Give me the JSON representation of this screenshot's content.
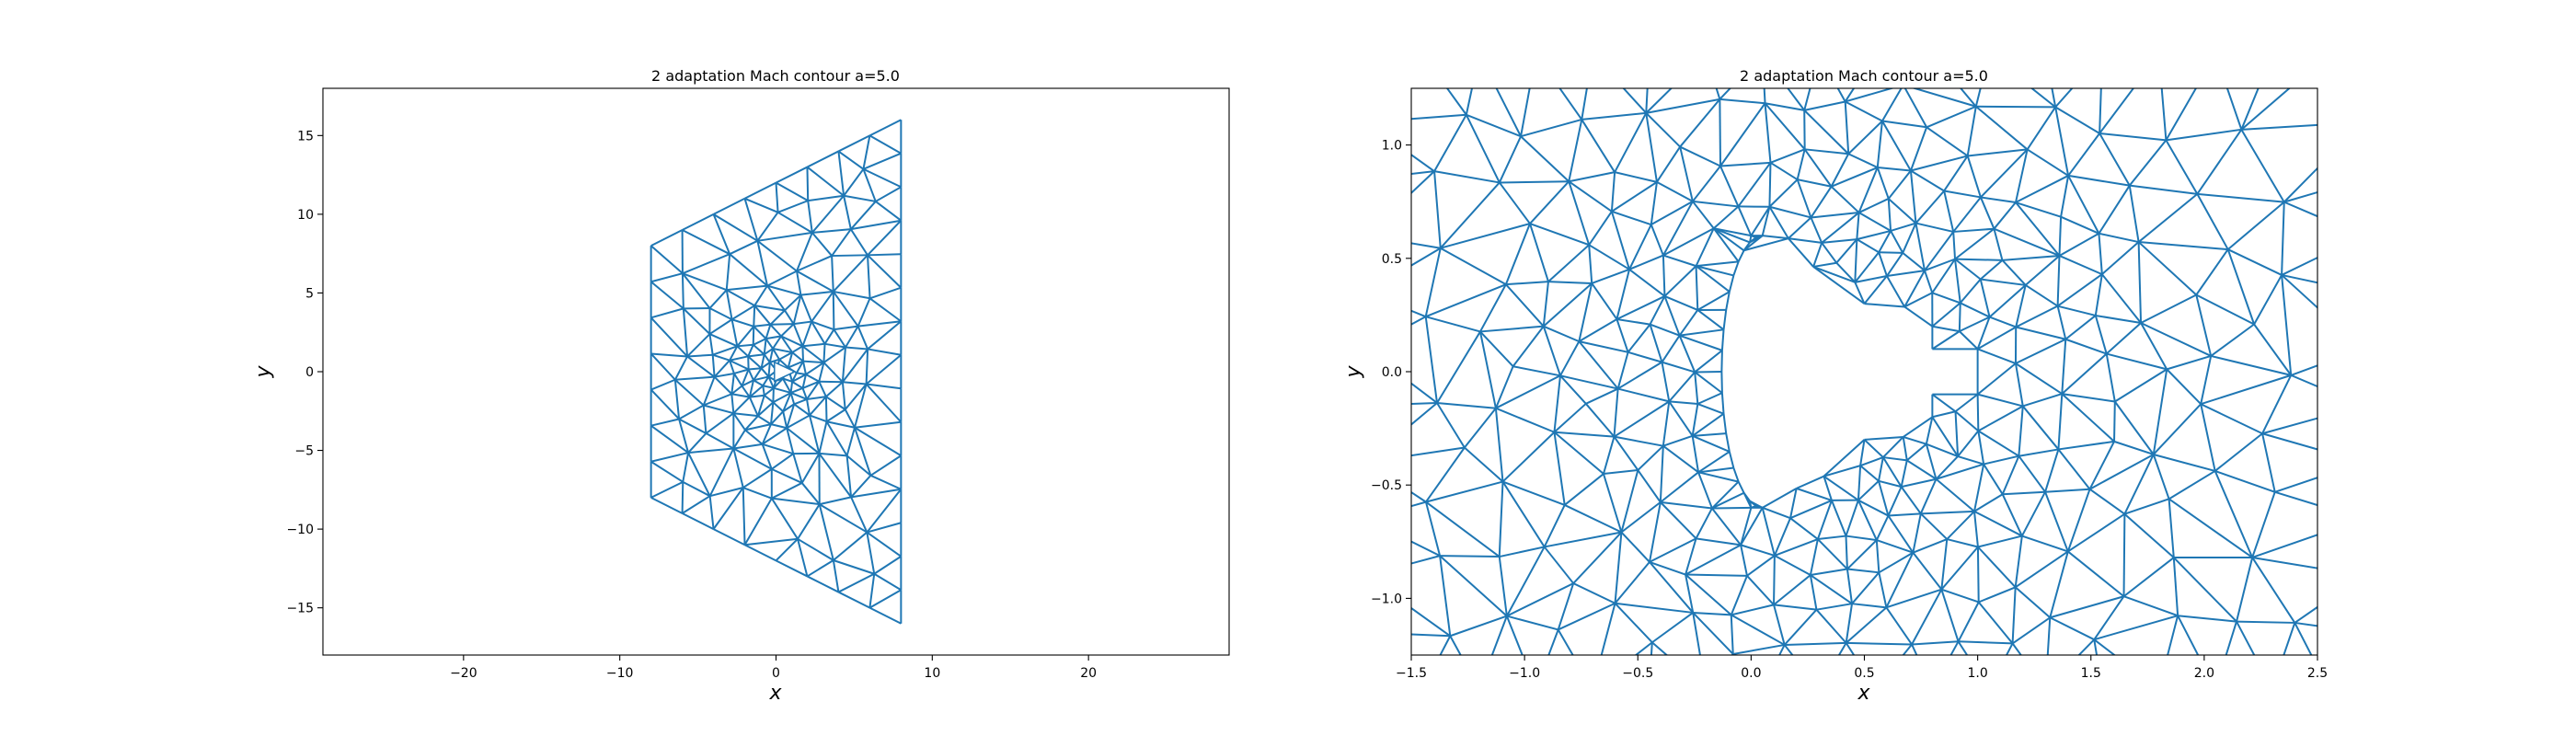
{
  "chart_data": [
    {
      "type": "line",
      "title": "2 adaptation Mach contour a=5.0",
      "xlabel": "x",
      "ylabel": "y",
      "xlim": [
        -29,
        29
      ],
      "ylim": [
        -18,
        18
      ],
      "xticks": [
        -20,
        -10,
        0,
        10,
        20
      ],
      "yticks": [
        -15,
        -10,
        -5,
        0,
        5,
        10,
        15
      ],
      "xtick_labels": [
        "−20",
        "−10",
        "0",
        "10",
        "20"
      ],
      "ytick_labels": [
        "−15",
        "−10",
        "−5",
        "0",
        "5",
        "10",
        "15"
      ],
      "grid": false,
      "series": [
        {
          "color": "#1f77b4",
          "boundary": [
            [
              -8,
              8
            ],
            [
              8,
              16
            ],
            [
              8,
              -16
            ],
            [
              -8,
              -8
            ],
            [
              -8,
              8
            ]
          ]
        }
      ]
    },
    {
      "type": "line",
      "title": "2 adaptation Mach contour a=5.0",
      "xlabel": "x",
      "ylabel": "y",
      "xlim": [
        -1.5,
        2.5
      ],
      "ylim": [
        -1.25,
        1.25
      ],
      "xticks": [
        -1.5,
        -1.0,
        -0.5,
        0.0,
        0.5,
        1.0,
        1.5,
        2.0,
        2.5
      ],
      "yticks": [
        -1.0,
        -0.5,
        0.0,
        0.5,
        1.0
      ],
      "xtick_labels": [
        "−1.5",
        "−1.0",
        "−0.5",
        "0.0",
        "0.5",
        "1.0",
        "1.5",
        "2.0",
        "2.5"
      ],
      "ytick_labels": [
        "−1.0",
        "−0.5",
        "0.0",
        "0.5",
        "1.0"
      ],
      "grid": false,
      "series": [
        {
          "color": "#1f77b4",
          "hole_boundary": [
            [
              0.0,
              0.6
            ],
            [
              0.5,
              0.3
            ],
            [
              0.8,
              0.2
            ],
            [
              0.8,
              0.1
            ],
            [
              1.0,
              0.1
            ],
            [
              1.0,
              -0.1
            ],
            [
              0.8,
              -0.1
            ],
            [
              0.8,
              -0.2
            ],
            [
              0.5,
              -0.3
            ],
            [
              0.0,
              -0.6
            ]
          ]
        }
      ]
    }
  ]
}
